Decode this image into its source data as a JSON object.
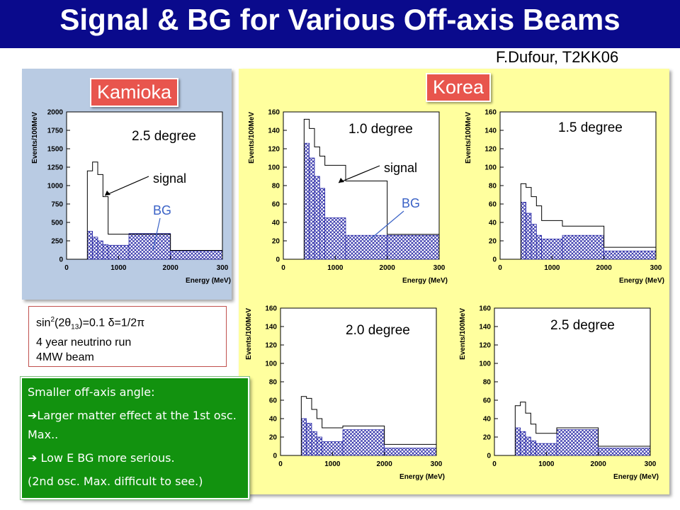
{
  "title": "Signal & BG for Various Off-axis Beams",
  "credit": "F.Dufour, T2KK06",
  "regions": {
    "kamioka": "Kamioka",
    "korea": "Korea"
  },
  "parameters": {
    "line1_prefix": "sin",
    "line1_exp": "2",
    "line1_mid": "(2θ",
    "line1_sub": "13",
    "line1_rest": ")=0.1  δ=1/2π",
    "line2": "4 year neutrino run",
    "line3": "4MW beam"
  },
  "notes": {
    "line1": "Smaller off-axis angle:",
    "line2_arrow": "➔",
    "line2": "Larger matter effect at the 1st osc. Max..",
    "line3_arrow": "➔",
    "line3": " Low E BG more serious.",
    "line4": "(2nd osc. Max. difficult to see.)"
  },
  "colors": {
    "title_bg": "#0a0a8c",
    "kamioka_panel": "#b9cbe3",
    "korea_panel": "#ffff9e",
    "region_label": "#e8554d",
    "note_bg": "#12920f",
    "bg_hatch": "#1a1aa0"
  },
  "chart_data": [
    {
      "id": "kamioka",
      "type": "histogram",
      "annotation": "2.5 degree",
      "ylabel": "Events/100MeV",
      "xlabel": "Energy (MeV)",
      "xlim": [
        0,
        3000
      ],
      "ylim": [
        0,
        2000
      ],
      "yticks": [
        "0",
        "250",
        "500",
        "750",
        "1000",
        "1250",
        "1500",
        "1750",
        "2000"
      ],
      "xticks": [
        "0",
        "1000",
        "2000",
        "300"
      ],
      "signal_label": "signal",
      "bg_label": "BG",
      "edges": [
        400,
        500,
        600,
        700,
        800,
        1200,
        2000,
        3000
      ],
      "signal": [
        1200,
        1320,
        1150,
        850,
        340,
        340,
        120
      ],
      "bg": [
        380,
        300,
        250,
        200,
        190,
        350,
        110
      ]
    },
    {
      "id": "korea-1.0",
      "type": "histogram",
      "annotation": "1.0 degree",
      "ylabel": "Events/100MeV",
      "xlabel": "Energy (MeV)",
      "xlim": [
        0,
        3000
      ],
      "ylim": [
        0,
        160
      ],
      "yticks": [
        "0",
        "20",
        "40",
        "60",
        "80",
        "100",
        "120",
        "140",
        "160"
      ],
      "xticks": [
        "0",
        "1000",
        "2000",
        "300"
      ],
      "signal_label": "signal",
      "bg_label": "BG",
      "edges": [
        400,
        500,
        600,
        700,
        800,
        1200,
        2000,
        3000
      ],
      "signal": [
        152,
        142,
        122,
        112,
        102,
        85,
        27
      ],
      "bg": [
        126,
        110,
        90,
        77,
        45,
        26,
        26
      ]
    },
    {
      "id": "korea-1.5",
      "type": "histogram",
      "annotation": "1.5 degree",
      "ylabel": "Events/100MeV",
      "xlabel": "Energy (MeV)",
      "xlim": [
        0,
        3000
      ],
      "ylim": [
        0,
        160
      ],
      "yticks": [
        "0",
        "20",
        "40",
        "60",
        "80",
        "100",
        "120",
        "140",
        "160"
      ],
      "xticks": [
        "0",
        "1000",
        "2000",
        "300"
      ],
      "edges": [
        400,
        500,
        600,
        700,
        800,
        1200,
        2000,
        3000
      ],
      "signal": [
        82,
        78,
        68,
        58,
        42,
        36,
        13
      ],
      "bg": [
        62,
        50,
        38,
        26,
        22,
        26,
        9
      ]
    },
    {
      "id": "korea-2.0",
      "type": "histogram",
      "annotation": "2.0 degree",
      "ylabel": "Events/100MeV",
      "xlabel": "Energy (MeV)",
      "xlim": [
        0,
        3000
      ],
      "ylim": [
        0,
        160
      ],
      "yticks": [
        "0",
        "20",
        "40",
        "60",
        "80",
        "100",
        "120",
        "140",
        "160"
      ],
      "xticks": [
        "0",
        "1000",
        "2000",
        "300"
      ],
      "edges": [
        400,
        500,
        600,
        700,
        800,
        1200,
        2000,
        3000
      ],
      "signal": [
        64,
        62,
        50,
        40,
        30,
        32,
        12
      ],
      "bg": [
        40,
        35,
        26,
        20,
        15,
        28,
        8
      ]
    },
    {
      "id": "korea-2.5",
      "type": "histogram",
      "annotation": "2.5 degree",
      "ylabel": "Events/100MeV",
      "xlabel": "Energy (MeV)",
      "xlim": [
        0,
        3000
      ],
      "ylim": [
        0,
        160
      ],
      "yticks": [
        "0",
        "20",
        "40",
        "60",
        "80",
        "100",
        "120",
        "140",
        "160"
      ],
      "xticks": [
        "0",
        "1000",
        "2000",
        "300"
      ],
      "edges": [
        400,
        500,
        600,
        700,
        800,
        1200,
        2000,
        3000
      ],
      "signal": [
        54,
        58,
        46,
        34,
        24,
        30,
        10
      ],
      "bg": [
        30,
        26,
        20,
        16,
        13,
        28,
        8
      ]
    }
  ]
}
